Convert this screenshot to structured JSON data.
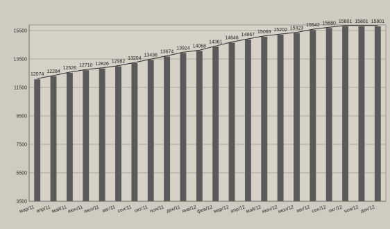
{
  "chart_data": {
    "type": "bar",
    "title": "",
    "xlabel": "",
    "ylabel": "",
    "ylim": [
      3500,
      15500
    ],
    "yticks": [
      3500,
      5500,
      7500,
      9500,
      11500,
      13500,
      15500
    ],
    "grid": true,
    "bar_color": "#5a5a5a",
    "trend_line": true,
    "categories": [
      "мар/11",
      "апр/11",
      "май/11",
      "июн/11",
      "июл/11",
      "авг/11",
      "сен/11",
      "окт/11",
      "ноя/11",
      "дек/11",
      "янв/12",
      "фев/12",
      "мар/12",
      "апр/12",
      "май/12",
      "июн/12",
      "июл/12",
      "авг/12",
      "сен/12",
      "окт/12",
      "ноя/12",
      "дек/12"
    ],
    "tick_labels": [
      "мар/11",
      "апр/11",
      "май/11",
      "июн/11",
      "июл/11",
      "авг/11",
      "сен/11",
      "окт/11",
      "ноя/11",
      "дек/11",
      "янв/12",
      "фев/12",
      "мар/12",
      "апр/12",
      "май/12",
      "июн/12",
      "июл/12",
      "авг/12",
      "сен/12",
      "окт/12",
      "ноя/12",
      "дек/12"
    ],
    "values": [
      12074,
      12284,
      12526,
      12710,
      12826,
      12982,
      13204,
      13436,
      13674,
      13924,
      14068,
      14361,
      14646,
      14867,
      15069,
      15202,
      15323,
      15542,
      15680,
      15801,
      15801,
      15801
    ]
  }
}
